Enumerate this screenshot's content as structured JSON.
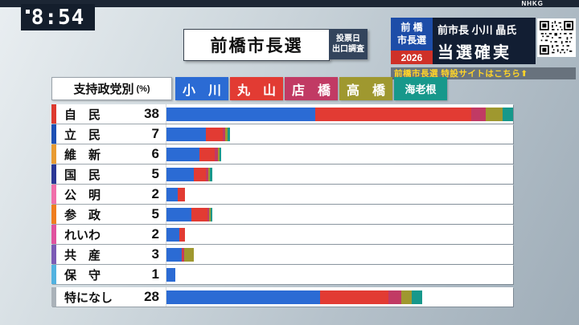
{
  "status_bar": {
    "clock": "8:54",
    "channel": "NHKG"
  },
  "header": {
    "title": "前橋市長選",
    "poll_badge": {
      "line1": "投票日",
      "line2": "出口調査"
    },
    "race_badge": {
      "line1": "前 橋",
      "line2": "市長選",
      "year": "2026"
    },
    "result": {
      "line1": "前市長 小川 晶氏",
      "line2": "当選確実"
    },
    "ticker": "前橋市長選 特設サイトはこちら⬆"
  },
  "chart_data": {
    "type": "bar",
    "orientation": "horizontal",
    "title": "支持政党別",
    "unit": "(%)",
    "max": 38,
    "legend": [
      {
        "name": "小　川",
        "color": "#2b6bd4"
      },
      {
        "name": "丸　山",
        "color": "#e23b33"
      },
      {
        "name": "店　橋",
        "color": "#c13a64"
      },
      {
        "name": "高　橋",
        "color": "#9f982f"
      },
      {
        "name": "海老根",
        "color": "#17988b"
      }
    ],
    "rows": [
      {
        "party": "自　民",
        "value": 38,
        "accent": "#dd3a2f",
        "split": [
          43,
          45,
          4,
          5,
          3
        ]
      },
      {
        "party": "立　民",
        "value": 7,
        "accent": "#1d50b4",
        "split": [
          62,
          26,
          4,
          4,
          4
        ]
      },
      {
        "party": "維　新",
        "value": 6,
        "accent": "#e89b32",
        "split": [
          60,
          28,
          6,
          3,
          3
        ]
      },
      {
        "party": "国　民",
        "value": 5,
        "accent": "#2a3795",
        "split": [
          60,
          26,
          6,
          4,
          4
        ]
      },
      {
        "party": "公　明",
        "value": 2,
        "accent": "#f06eaa",
        "split": [
          62,
          38,
          0,
          0,
          0
        ]
      },
      {
        "party": "参　政",
        "value": 5,
        "accent": "#ef7d1f",
        "split": [
          55,
          35,
          4,
          3,
          3
        ]
      },
      {
        "party": "れいわ",
        "value": 2,
        "accent": "#e0529e",
        "split": [
          72,
          28,
          0,
          0,
          0
        ]
      },
      {
        "party": "共　産",
        "value": 3,
        "accent": "#7b5bb5",
        "split": [
          55,
          5,
          5,
          35,
          0
        ]
      },
      {
        "party": "保　守",
        "value": 1,
        "accent": "#52b2e0",
        "split": [
          100,
          0,
          0,
          0,
          0
        ]
      },
      {
        "party": "特になし",
        "value": 28,
        "accent": "#aab2b9",
        "split": [
          60,
          27,
          5,
          4,
          4
        ]
      }
    ]
  }
}
